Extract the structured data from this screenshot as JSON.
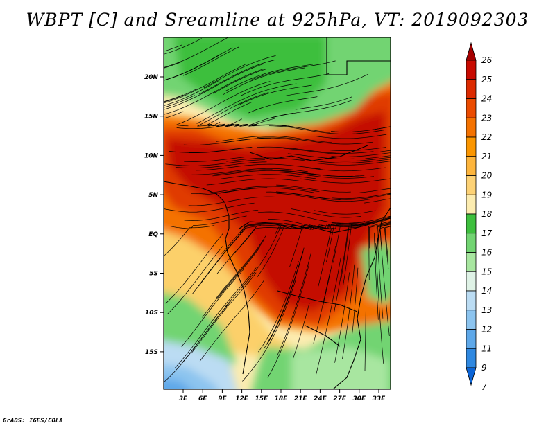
{
  "title": "WBPT [C] and Sreamline at 925hPa, VT: 2019092303",
  "credit": "GrADS: IGES/COLA",
  "map": {
    "lat_ticks": [
      "20N",
      "15N",
      "10N",
      "5N",
      "EQ",
      "5S",
      "10S",
      "15S"
    ],
    "lon_ticks": [
      "3E",
      "6E",
      "9E",
      "12E",
      "15E",
      "18E",
      "21E",
      "24E",
      "27E",
      "30E",
      "33E"
    ],
    "field": "wet bulb potential temperature",
    "overlay": "streamlines"
  },
  "colorbar": {
    "labels": [
      "26",
      "25",
      "24",
      "23",
      "22",
      "21",
      "20",
      "19",
      "18",
      "17",
      "16",
      "15",
      "14",
      "13",
      "12",
      "11",
      "9",
      "7"
    ],
    "colors": [
      "#a50000",
      "#c80a00",
      "#dc2a00",
      "#eb4b00",
      "#f47200",
      "#fb9600",
      "#fdb53d",
      "#fdd276",
      "#fcecb0",
      "#3ebf3e",
      "#72d472",
      "#a8e6a0",
      "#dff2e6",
      "#bbdcf3",
      "#8cc4ef",
      "#5ea8e9",
      "#2f88e0",
      "#0b64d6"
    ]
  }
}
